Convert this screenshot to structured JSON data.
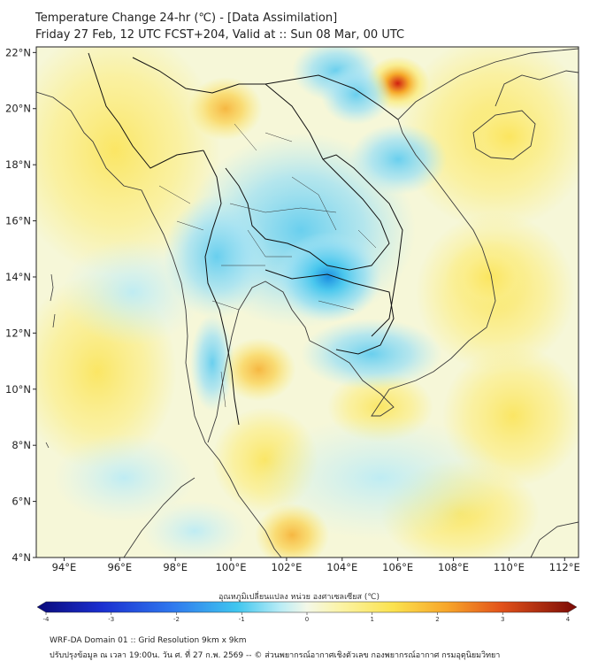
{
  "header": {
    "title_line1": "Temperature Change 24-hr (℃) - [Data Assimilation]",
    "title_line2": "Friday 27 Feb, 12 UTC FCST+204, Valid at :: Sun 08 Mar, 00 UTC"
  },
  "map": {
    "lat_labels": [
      "22°N",
      "20°N",
      "18°N",
      "16°N",
      "14°N",
      "12°N",
      "10°N",
      "8°N",
      "6°N",
      "4°N"
    ],
    "lon_labels": [
      "94°E",
      "96°E",
      "98°E",
      "100°E",
      "102°E",
      "104°E",
      "106°E",
      "108°E",
      "110°E",
      "112°E"
    ],
    "lat_range": [
      4,
      22.2
    ],
    "lon_range": [
      93,
      112.5
    ],
    "hotspots": [
      {
        "label": "warm",
        "lon": 106.0,
        "lat": 20.9,
        "value": 3.0
      },
      {
        "label": "warm",
        "lon": 101.0,
        "lat": 10.7,
        "value": 2.2
      },
      {
        "label": "warm",
        "lon": 99.8,
        "lat": 20.0,
        "value": 1.5
      },
      {
        "label": "warm",
        "lon": 102.2,
        "lat": 4.8,
        "value": 1.4
      },
      {
        "label": "warm",
        "lon": 110.0,
        "lat": 19.0,
        "value": 1.0
      },
      {
        "label": "warm",
        "lon": 109.3,
        "lat": 14.0,
        "value": 1.0
      },
      {
        "label": "cold",
        "lon": 103.5,
        "lat": 14.0,
        "value": -1.3
      },
      {
        "label": "cold",
        "lon": 104.5,
        "lat": 20.5,
        "value": -1.0
      }
    ]
  },
  "colorbar": {
    "title": "อุณหภูมิเปลี่ยนแปลง หน่วย องศาเซลเซียส (℃)",
    "tick_labels": [
      "-4",
      "-3",
      "-2",
      "-1",
      "0",
      "1",
      "2",
      "3",
      "4"
    ],
    "range": [
      -4,
      4
    ]
  },
  "footer": {
    "line1": "WRF-DA Domain 01 :: Grid Resolution 9km x 9km",
    "line2": "ปรับปรุงข้อมูล ณ เวลา 19:00น. วัน ศ. ที่ 27 ก.พ. 2569 -- © ส่วนพยากรณ์อากาศเชิงตัวเลข กองพยากรณ์อากาศ กรมอุตุนิยมวิทยา"
  },
  "colors": {
    "warm_strong": "#d02010",
    "warm": "#f6a623",
    "warm_light": "#fbe96a",
    "neutral": "#f6f7d8",
    "cool_light": "#b8eaf6",
    "cool": "#45c6ee",
    "cool_strong": "#1c8fe0",
    "border": "#111111",
    "coast": "#444444"
  }
}
